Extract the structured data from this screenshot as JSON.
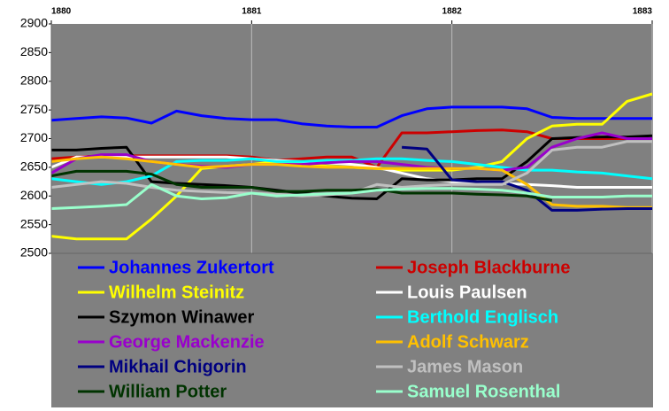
{
  "chart_data": {
    "type": "line",
    "x": [
      1880,
      1880.125,
      1880.25,
      1880.375,
      1880.5,
      1880.625,
      1880.75,
      1880.875,
      1881,
      1881.125,
      1881.25,
      1881.375,
      1881.5,
      1881.625,
      1881.75,
      1881.875,
      1882,
      1882.125,
      1882.25,
      1882.375,
      1882.5,
      1882.625,
      1882.75,
      1882.875,
      1883
    ],
    "xlim": [
      1880,
      1883
    ],
    "xticks": [
      1880,
      1881,
      1882,
      1883
    ],
    "ylim": [
      2500,
      2900
    ],
    "yticks": [
      2500,
      2550,
      2600,
      2650,
      2700,
      2750,
      2800,
      2850,
      2900
    ],
    "grid": "x",
    "legend": "bottom",
    "series": [
      {
        "name": "Johannes Zukertort",
        "color": "#0000ff",
        "values": [
          2732,
          2735,
          2738,
          2736,
          2727,
          2748,
          2740,
          2735,
          2733,
          2733,
          2726,
          2722,
          2720,
          2720,
          2740,
          2752,
          2755,
          2755,
          2755,
          2752,
          2737,
          2735,
          2735,
          2735,
          2735
        ]
      },
      {
        "name": "Joseph Blackburne",
        "color": "#cc0000",
        "values": [
          2665,
          2668,
          2670,
          2670,
          2670,
          2670,
          2670,
          2670,
          2668,
          2662,
          2665,
          2668,
          2668,
          2650,
          2710,
          2710,
          2712,
          2714,
          2715,
          2712,
          2700,
          2700,
          2700,
          2700,
          2700
        ]
      },
      {
        "name": "Wilhelm Steinitz",
        "color": "#ffff00",
        "values": [
          2530,
          2525,
          2525,
          2525,
          2560,
          2600,
          2648,
          2652,
          2655,
          2660,
          2656,
          2652,
          2650,
          2648,
          2645,
          2645,
          2645,
          2650,
          2660,
          2700,
          2722,
          2725,
          2725,
          2765,
          2778
        ]
      },
      {
        "name": "Louis Paulsen",
        "color": "#ffffff",
        "values": [
          2650,
          2668,
          2668,
          2668,
          2668,
          2668,
          2668,
          2668,
          2665,
          2662,
          2660,
          2658,
          2655,
          2650,
          2640,
          2630,
          2625,
          2625,
          2622,
          2620,
          2618,
          2615,
          2615,
          2615,
          2615
        ]
      },
      {
        "name": "Szymon Winawer",
        "color": "#000000",
        "values": [
          2680,
          2680,
          2683,
          2685,
          2625,
          2622,
          2620,
          2618,
          2615,
          2610,
          2605,
          2600,
          2596,
          2595,
          2630,
          2628,
          2628,
          2630,
          2630,
          2660,
          2700,
          2702,
          2703,
          2703,
          2705
        ]
      },
      {
        "name": "Berthold Englisch",
        "color": "#00ffff",
        "values": [
          2630,
          2625,
          2620,
          2625,
          2635,
          2660,
          2662,
          2662,
          2665,
          2660,
          2660,
          2662,
          2662,
          2665,
          2665,
          2662,
          2660,
          2655,
          2650,
          2645,
          2645,
          2642,
          2640,
          2635,
          2630
        ]
      },
      {
        "name": "George Mackenzie",
        "color": "#9900cc",
        "values": [
          2640,
          2665,
          2672,
          2672,
          2660,
          2655,
          2652,
          2650,
          2655,
          2655,
          2655,
          2658,
          2660,
          2660,
          2655,
          2650,
          2648,
          2648,
          2645,
          2650,
          2685,
          2700,
          2710,
          2700,
          2700
        ]
      },
      {
        "name": "Adolf Schwarz",
        "color": "#ffc000",
        "values": [
          2660,
          2665,
          2668,
          2665,
          2660,
          2655,
          2650,
          2652,
          2655,
          2655,
          2652,
          2650,
          2650,
          2648,
          2648,
          2648,
          2648,
          2648,
          2645,
          2620,
          2585,
          2582,
          2582,
          2580,
          2580
        ]
      },
      {
        "name": "Mikhail Chigorin",
        "color": "#000080",
        "values": [
          null,
          null,
          null,
          null,
          null,
          null,
          null,
          null,
          null,
          null,
          null,
          null,
          null,
          null,
          2685,
          2682,
          2628,
          2625,
          2625,
          2610,
          2575,
          2575,
          2577,
          2578,
          2578
        ]
      },
      {
        "name": "James Mason",
        "color": "#c0c0c0",
        "values": [
          2615,
          2620,
          2625,
          2622,
          2615,
          2610,
          2608,
          2606,
          2605,
          2603,
          2600,
          2602,
          2605,
          2620,
          2615,
          2618,
          2620,
          2620,
          2620,
          2640,
          2680,
          2685,
          2685,
          2695,
          2695
        ]
      },
      {
        "name": "William Potter",
        "color": "#003300",
        "values": [
          2635,
          2643,
          2643,
          2643,
          2638,
          2620,
          2615,
          2615,
          2615,
          2608,
          2608,
          2610,
          2610,
          2612,
          2605,
          2605,
          2605,
          2603,
          2602,
          2600,
          2592,
          null,
          null,
          null,
          null
        ]
      },
      {
        "name": "Samuel Rosenthal",
        "color": "#99ffcc",
        "values": [
          2578,
          2580,
          2582,
          2585,
          2620,
          2600,
          2595,
          2597,
          2605,
          2600,
          2602,
          2604,
          2605,
          2610,
          2612,
          2613,
          2613,
          2612,
          2610,
          2605,
          2598,
          2598,
          2598,
          2600,
          2600
        ]
      }
    ]
  }
}
